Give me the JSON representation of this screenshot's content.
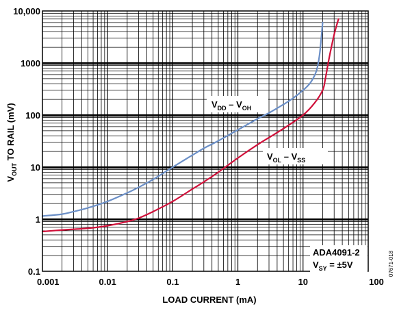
{
  "chart_data": {
    "type": "line",
    "xlabel": "LOAD CURRENT (mA)",
    "ylabel": {
      "main": "V",
      "sub": "OUT",
      "rest": " TO RAIL (mV)"
    },
    "x_scale": "log",
    "y_scale": "log",
    "xlim": [
      0.001,
      100
    ],
    "ylim": [
      0.1,
      10000
    ],
    "x_ticks": [
      "0.001",
      "0.01",
      "0.1",
      "1",
      "10",
      "100"
    ],
    "y_ticks": [
      "0.1",
      "1",
      "10",
      "100",
      "1000",
      "10,000"
    ],
    "grid": true,
    "series": [
      {
        "name": "VDD – VOH",
        "label_parts": {
          "a": "V",
          "a_sub": "DD",
          "mid": " – V",
          "b_sub": "OH"
        },
        "color": "#6b8fc7",
        "x": [
          0.001,
          0.002,
          0.003,
          0.005,
          0.01,
          0.02,
          0.03,
          0.05,
          0.1,
          0.2,
          0.3,
          0.5,
          1,
          2,
          3,
          5,
          7,
          10,
          13,
          16,
          18,
          20
        ],
        "y": [
          1.15,
          1.25,
          1.4,
          1.65,
          2.2,
          3.2,
          4.1,
          5.8,
          10,
          17,
          23,
          32,
          52,
          85,
          110,
          160,
          210,
          300,
          420,
          700,
          1500,
          6000
        ]
      },
      {
        "name": "VOL – VSS",
        "label_parts": {
          "a": "V",
          "a_sub": "OL",
          "mid": " – V",
          "b_sub": "SS"
        },
        "color": "#d0103a",
        "x": [
          0.001,
          0.002,
          0.005,
          0.01,
          0.02,
          0.03,
          0.05,
          0.1,
          0.2,
          0.3,
          0.5,
          1,
          2,
          3,
          5,
          10,
          15,
          20,
          22,
          25,
          30,
          35
        ],
        "y": [
          0.58,
          0.62,
          0.67,
          0.75,
          0.9,
          1.05,
          1.4,
          2.2,
          3.8,
          5.2,
          8,
          15,
          27,
          37,
          55,
          100,
          170,
          300,
          500,
          1200,
          3500,
          7000
        ]
      }
    ],
    "annotation": {
      "line1": "ADA4091-2",
      "line2": {
        "a": "V",
        "a_sub": "SY",
        "rest": " = ±5V"
      }
    }
  },
  "figure_id": "07671-018"
}
